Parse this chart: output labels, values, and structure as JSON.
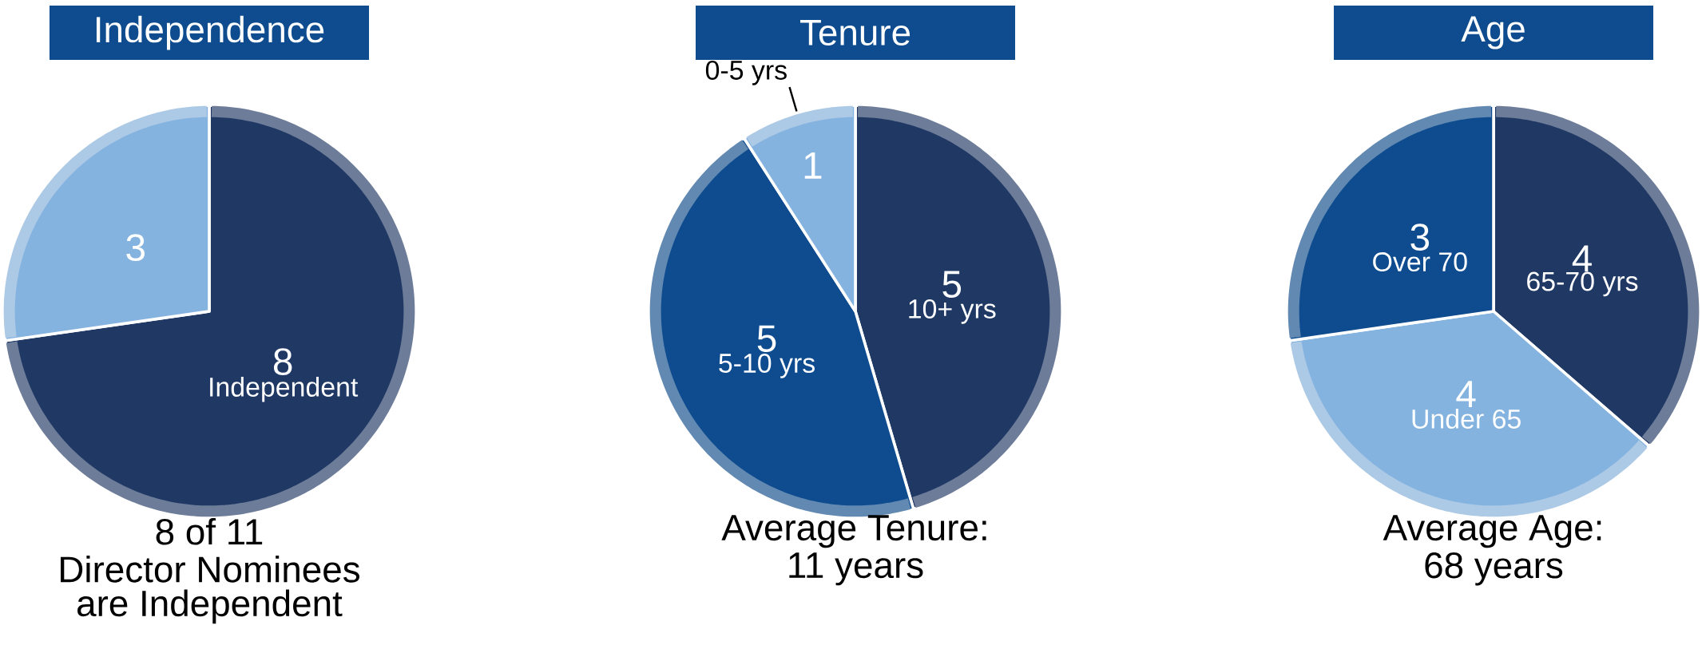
{
  "chart_data": [
    {
      "type": "pie",
      "title": "Independence",
      "categories": [
        "Independent",
        null
      ],
      "values": [
        8,
        3
      ],
      "colors": [
        "#1f3864",
        "#85b3e0"
      ],
      "data_labels": true,
      "annotations": [
        "8 of 11",
        "Director Nominees",
        "are Independent"
      ]
    },
    {
      "type": "pie",
      "title": "Tenure",
      "categories": [
        "10+ yrs",
        "5-10 yrs",
        "0-5 yrs"
      ],
      "values": [
        5,
        5,
        1
      ],
      "colors": [
        "#1f3864",
        "#0e4c8f",
        "#85b3e0"
      ],
      "data_labels": true,
      "annotations": [
        "Average Tenure:",
        "11 years"
      ]
    },
    {
      "type": "pie",
      "title": "Age",
      "categories": [
        "65-70 yrs",
        "Under 65",
        "Over 70"
      ],
      "values": [
        4,
        4,
        3
      ],
      "colors": [
        "#1f3864",
        "#85b3e0",
        "#0e4c8f"
      ],
      "data_labels": true,
      "annotations": [
        "Average Age:",
        "68 years"
      ]
    }
  ]
}
